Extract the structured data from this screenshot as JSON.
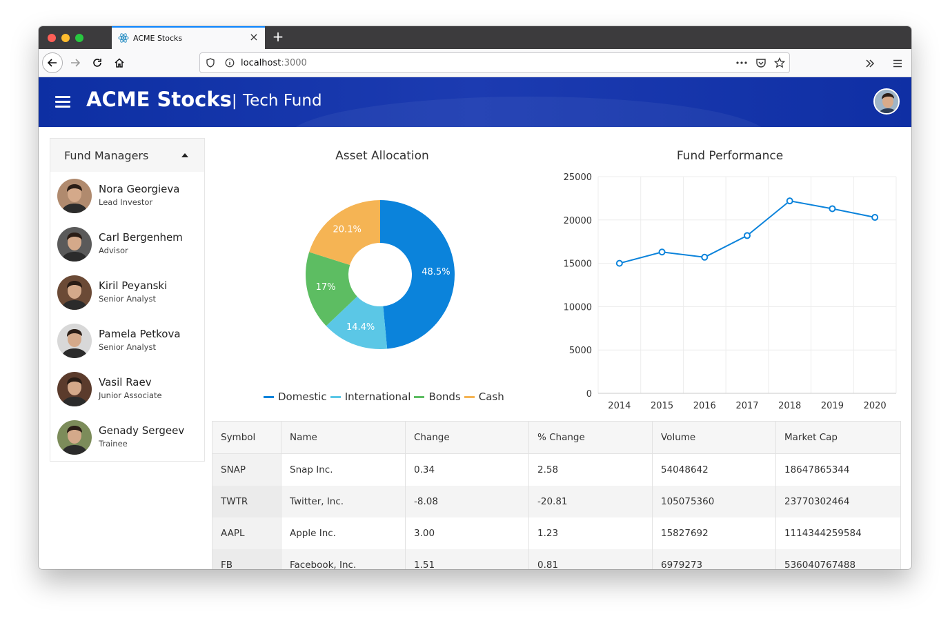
{
  "browser": {
    "tab_title": "ACME Stocks",
    "url_host": "localhost",
    "url_port": ":3000",
    "accent": "#0a84ff"
  },
  "header": {
    "brand": "ACME Stocks",
    "separator": "|",
    "subtitle": "Tech Fund",
    "background": "#1733ad"
  },
  "sidebar": {
    "title": "Fund Managers",
    "managers": [
      {
        "name": "Nora Georgieva",
        "role": "Lead Investor",
        "tone": "#b08a6e"
      },
      {
        "name": "Carl Bergenhem",
        "role": "Advisor",
        "tone": "#5a5a5a"
      },
      {
        "name": "Kiril Peyanski",
        "role": "Senior Analyst",
        "tone": "#6b4a36"
      },
      {
        "name": "Pamela Petkova",
        "role": "Senior Analyst",
        "tone": "#d8d8d8"
      },
      {
        "name": "Vasil Raev",
        "role": "Junior Associate",
        "tone": "#5b3b2c"
      },
      {
        "name": "Genady Sergeev",
        "role": "Trainee",
        "tone": "#7c8c5a"
      }
    ]
  },
  "chart_data": [
    {
      "type": "pie",
      "title": "Asset Allocation",
      "categories": [
        "Domestic",
        "International",
        "Bonds",
        "Cash"
      ],
      "values": [
        48.5,
        14.4,
        17,
        20.1
      ],
      "labels": [
        "48.5%",
        "14.4%",
        "17%",
        "20.1%"
      ],
      "colors": [
        "#0b83db",
        "#5bc7e6",
        "#5dbd62",
        "#f5b454"
      ],
      "donut": true,
      "legend_position": "bottom"
    },
    {
      "type": "line",
      "title": "Fund Performance",
      "x": [
        "2014",
        "2015",
        "2016",
        "2017",
        "2018",
        "2019",
        "2020"
      ],
      "series": [
        {
          "values": [
            15000,
            16300,
            15700,
            18200,
            22200,
            21300,
            20300
          ],
          "color": "#0b83db"
        }
      ],
      "ylim": [
        0,
        25000
      ],
      "y_ticks": [
        "0",
        "5000",
        "10000",
        "15000",
        "20000",
        "25000"
      ],
      "grid": true
    }
  ],
  "stocks_table": {
    "columns": [
      "Symbol",
      "Name",
      "Change",
      "% Change",
      "Volume",
      "Market Cap"
    ],
    "rows": [
      [
        "SNAP",
        "Snap Inc.",
        "0.34",
        "2.58",
        "54048642",
        "18647865344"
      ],
      [
        "TWTR",
        "Twitter, Inc.",
        "-8.08",
        "-20.81",
        "105075360",
        "23770302464"
      ],
      [
        "AAPL",
        "Apple Inc.",
        "3.00",
        "1.23",
        "15827692",
        "1114344259584"
      ],
      [
        "FB",
        "Facebook, Inc.",
        "1.51",
        "0.81",
        "6979273",
        "536040767488"
      ]
    ]
  },
  "icons": {
    "back": "arrow-left-icon",
    "forward": "arrow-right-icon",
    "reload": "reload-icon",
    "home": "home-icon",
    "shield": "shield-icon",
    "info": "info-icon",
    "more": "more-dots-icon",
    "pocket": "pocket-icon",
    "bookmark": "star-icon",
    "overflow": "chevron-double-right-icon",
    "app_menu": "hamburger-icon"
  }
}
